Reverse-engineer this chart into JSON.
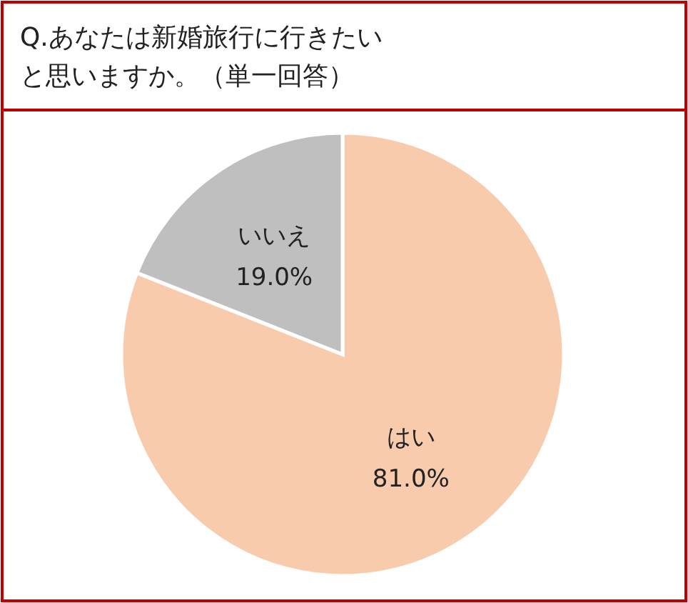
{
  "chart_data": {
    "type": "pie",
    "title": "Q.あなたは新婚旅行に行きたいと思いますか。（単一回答）",
    "categories": [
      "はい",
      "いいえ"
    ],
    "values": [
      81.0,
      19.0
    ],
    "colors": [
      "#f8cbad",
      "#bfbfbf"
    ],
    "value_labels": [
      "81.0%",
      "19.0%"
    ]
  }
}
